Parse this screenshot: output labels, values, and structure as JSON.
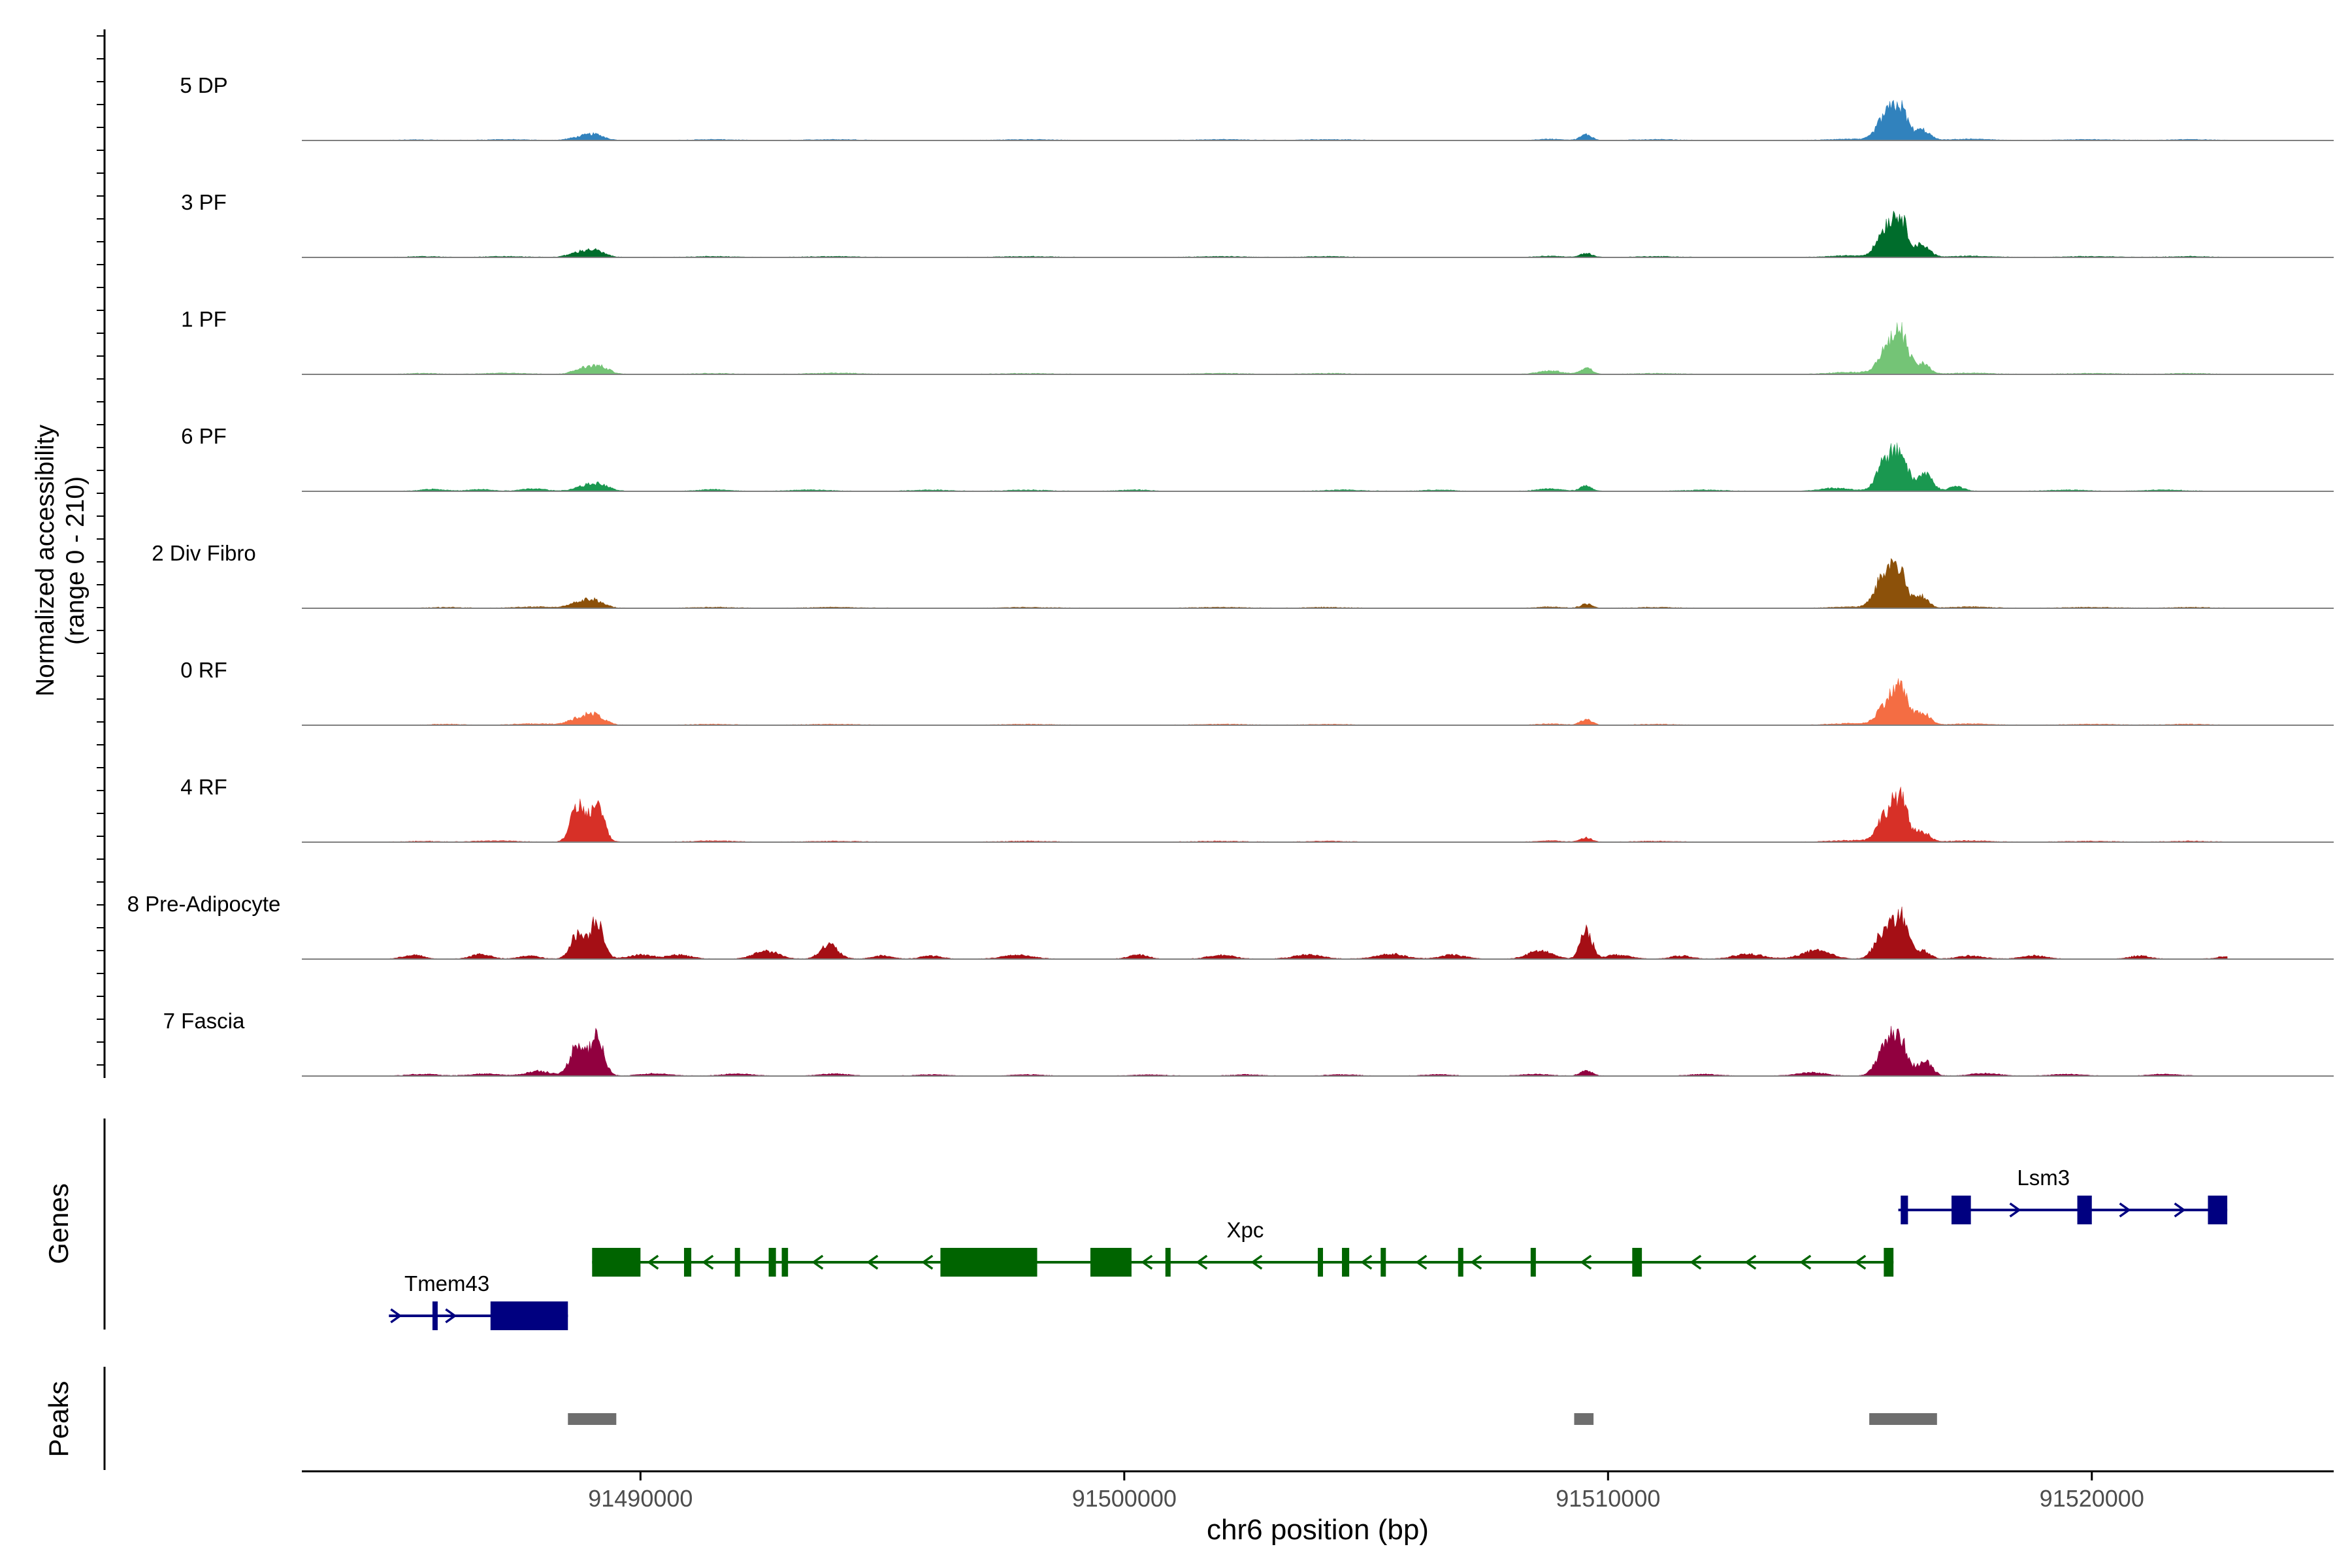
{
  "chart_data": {
    "type": "area",
    "title": "",
    "xlabel": "chr6 position (bp)",
    "ylabel": "Normalized accessibility",
    "ylabel_range": "(range 0 - 210)",
    "xlim": [
      91483000,
      91525000
    ],
    "ylim": [
      0,
      210
    ],
    "xticks": [
      91490000,
      91500000,
      91510000,
      91520000
    ],
    "xtick_labels": [
      "91490000",
      "91500000",
      "91510000",
      "91520000"
    ],
    "grid": false,
    "tracks": [
      {
        "name": "5 DP",
        "color": "#3182bd",
        "peaks": [
          [
            91485400,
            1.5,
            300
          ],
          [
            91487200,
            2,
            400
          ],
          [
            91488700,
            6,
            200
          ],
          [
            91489050,
            14,
            200
          ],
          [
            91491500,
            2,
            400
          ],
          [
            91494000,
            2,
            500
          ],
          [
            91498000,
            2,
            500
          ],
          [
            91502000,
            2,
            500
          ],
          [
            91504200,
            2,
            500
          ],
          [
            91508800,
            3,
            250
          ],
          [
            91509550,
            14,
            120
          ],
          [
            91511000,
            2,
            400
          ],
          [
            91515000,
            3,
            400
          ],
          [
            91515750,
            60,
            180
          ],
          [
            91516050,
            70,
            150
          ],
          [
            91516500,
            25,
            150
          ],
          [
            91517500,
            3,
            400
          ],
          [
            91520000,
            2,
            500
          ],
          [
            91522000,
            2,
            400
          ]
        ]
      },
      {
        "name": "3 PF",
        "color": "#006d2c",
        "peaks": [
          [
            91485500,
            2,
            300
          ],
          [
            91487200,
            2,
            400
          ],
          [
            91488700,
            10,
            200
          ],
          [
            91489050,
            16,
            200
          ],
          [
            91491500,
            2,
            400
          ],
          [
            91494000,
            2,
            500
          ],
          [
            91498000,
            2,
            500
          ],
          [
            91502000,
            2,
            500
          ],
          [
            91504200,
            2,
            400
          ],
          [
            91508800,
            3,
            250
          ],
          [
            91509550,
            10,
            120
          ],
          [
            91511000,
            2,
            400
          ],
          [
            91515000,
            4,
            400
          ],
          [
            91515750,
            70,
            180
          ],
          [
            91516050,
            85,
            150
          ],
          [
            91516500,
            30,
            150
          ],
          [
            91517500,
            3,
            400
          ],
          [
            91520000,
            2,
            500
          ],
          [
            91522000,
            2,
            400
          ]
        ]
      },
      {
        "name": "1 PF",
        "color": "#74c476",
        "peaks": [
          [
            91485500,
            2,
            300
          ],
          [
            91487200,
            3,
            400
          ],
          [
            91488800,
            12,
            200
          ],
          [
            91489150,
            18,
            200
          ],
          [
            91491500,
            2,
            400
          ],
          [
            91494000,
            3,
            500
          ],
          [
            91498000,
            2,
            500
          ],
          [
            91502000,
            2,
            500
          ],
          [
            91504200,
            2,
            400
          ],
          [
            91508800,
            8,
            250
          ],
          [
            91509550,
            16,
            120
          ],
          [
            91511000,
            2,
            400
          ],
          [
            91515000,
            5,
            400
          ],
          [
            91515750,
            55,
            180
          ],
          [
            91516050,
            95,
            150
          ],
          [
            91516500,
            25,
            150
          ],
          [
            91517500,
            3,
            400
          ],
          [
            91520000,
            2,
            500
          ],
          [
            91522000,
            2,
            400
          ]
        ]
      },
      {
        "name": "6 PF",
        "color": "#1a9850",
        "peaks": [
          [
            91485700,
            5,
            250
          ],
          [
            91486700,
            4,
            250
          ],
          [
            91487800,
            6,
            250
          ],
          [
            91488800,
            10,
            200
          ],
          [
            91489150,
            16,
            200
          ],
          [
            91491500,
            4,
            300
          ],
          [
            91493500,
            3,
            400
          ],
          [
            91496000,
            3,
            400
          ],
          [
            91498000,
            3,
            400
          ],
          [
            91500200,
            3,
            300
          ],
          [
            91504500,
            3,
            400
          ],
          [
            91506500,
            3,
            300
          ],
          [
            91508800,
            6,
            250
          ],
          [
            91509550,
            13,
            120
          ],
          [
            91512000,
            3,
            400
          ],
          [
            91514700,
            8,
            300
          ],
          [
            91515750,
            75,
            180
          ],
          [
            91516050,
            80,
            150
          ],
          [
            91516550,
            45,
            150
          ],
          [
            91517200,
            12,
            150
          ],
          [
            91519500,
            3,
            400
          ],
          [
            91521500,
            3,
            400
          ]
        ]
      },
      {
        "name": "2 Div Fibro",
        "color": "#8c510a",
        "peaks": [
          [
            91486000,
            2,
            300
          ],
          [
            91487800,
            3,
            400
          ],
          [
            91488700,
            12,
            200
          ],
          [
            91489050,
            18,
            200
          ],
          [
            91491500,
            2,
            400
          ],
          [
            91494000,
            2,
            500
          ],
          [
            91498000,
            2,
            500
          ],
          [
            91502000,
            2,
            500
          ],
          [
            91504200,
            2,
            400
          ],
          [
            91508800,
            3,
            250
          ],
          [
            91509550,
            10,
            120
          ],
          [
            91511000,
            2,
            400
          ],
          [
            91515000,
            3,
            400
          ],
          [
            91515700,
            75,
            180
          ],
          [
            91516000,
            90,
            150
          ],
          [
            91516450,
            30,
            150
          ],
          [
            91517500,
            3,
            400
          ],
          [
            91520000,
            2,
            500
          ],
          [
            91522000,
            2,
            400
          ]
        ]
      },
      {
        "name": "0 RF",
        "color": "#f46d43",
        "peaks": [
          [
            91486000,
            2,
            300
          ],
          [
            91487800,
            3,
            400
          ],
          [
            91488700,
            14,
            200
          ],
          [
            91489050,
            24,
            200
          ],
          [
            91491500,
            2,
            400
          ],
          [
            91494000,
            2,
            500
          ],
          [
            91498000,
            2,
            500
          ],
          [
            91502000,
            2,
            500
          ],
          [
            91504200,
            2,
            400
          ],
          [
            91508800,
            3,
            250
          ],
          [
            91509550,
            14,
            120
          ],
          [
            91511000,
            2,
            400
          ],
          [
            91515000,
            4,
            400
          ],
          [
            91515750,
            50,
            180
          ],
          [
            91516050,
            85,
            150
          ],
          [
            91516500,
            30,
            150
          ],
          [
            91517500,
            3,
            400
          ],
          [
            91520000,
            2,
            500
          ],
          [
            91522000,
            2,
            400
          ]
        ]
      },
      {
        "name": "4 RF",
        "color": "#d73027",
        "peaks": [
          [
            91485500,
            2,
            300
          ],
          [
            91487000,
            3,
            400
          ],
          [
            91488700,
            90,
            140
          ],
          [
            91489100,
            95,
            140
          ],
          [
            91491500,
            3,
            400
          ],
          [
            91494000,
            2,
            500
          ],
          [
            91498000,
            2,
            500
          ],
          [
            91502000,
            2,
            500
          ],
          [
            91504200,
            2,
            400
          ],
          [
            91508800,
            3,
            250
          ],
          [
            91509550,
            10,
            120
          ],
          [
            91511000,
            2,
            400
          ],
          [
            91515000,
            4,
            400
          ],
          [
            91515750,
            65,
            180
          ],
          [
            91516050,
            95,
            150
          ],
          [
            91516500,
            25,
            150
          ],
          [
            91517500,
            3,
            400
          ],
          [
            91520000,
            2,
            500
          ],
          [
            91522000,
            2,
            400
          ]
        ]
      },
      {
        "name": "8 Pre-Adipocyte",
        "color": "#a50f15",
        "peaks": [
          [
            91485300,
            10,
            200
          ],
          [
            91486700,
            12,
            200
          ],
          [
            91487700,
            8,
            200
          ],
          [
            91488700,
            60,
            150
          ],
          [
            91489100,
            95,
            140
          ],
          [
            91490000,
            10,
            250
          ],
          [
            91490800,
            10,
            250
          ],
          [
            91492600,
            20,
            250
          ],
          [
            91493900,
            35,
            180
          ],
          [
            91495000,
            8,
            200
          ],
          [
            91496000,
            8,
            200
          ],
          [
            91497800,
            10,
            300
          ],
          [
            91500300,
            10,
            200
          ],
          [
            91502000,
            10,
            250
          ],
          [
            91503800,
            10,
            300
          ],
          [
            91505500,
            12,
            300
          ],
          [
            91506800,
            10,
            250
          ],
          [
            91508600,
            20,
            250
          ],
          [
            91509550,
            70,
            120
          ],
          [
            91510200,
            10,
            250
          ],
          [
            91511500,
            8,
            200
          ],
          [
            91512900,
            12,
            300
          ],
          [
            91514300,
            20,
            300
          ],
          [
            91515700,
            65,
            180
          ],
          [
            91516050,
            100,
            150
          ],
          [
            91516500,
            20,
            150
          ],
          [
            91517500,
            8,
            250
          ],
          [
            91518800,
            8,
            250
          ],
          [
            91521000,
            8,
            200
          ],
          [
            91522800,
            6,
            200
          ]
        ]
      },
      {
        "name": "7 Fascia",
        "color": "#91003f",
        "peaks": [
          [
            91485500,
            4,
            300
          ],
          [
            91486800,
            5,
            300
          ],
          [
            91487900,
            12,
            250
          ],
          [
            91488700,
            80,
            150
          ],
          [
            91489100,
            95,
            140
          ],
          [
            91490300,
            6,
            300
          ],
          [
            91492000,
            5,
            300
          ],
          [
            91494000,
            5,
            300
          ],
          [
            91496000,
            3,
            300
          ],
          [
            91498000,
            3,
            300
          ],
          [
            91500500,
            3,
            300
          ],
          [
            91502500,
            3,
            300
          ],
          [
            91504500,
            3,
            300
          ],
          [
            91506500,
            3,
            300
          ],
          [
            91508500,
            4,
            300
          ],
          [
            91509550,
            14,
            120
          ],
          [
            91512000,
            4,
            300
          ],
          [
            91514200,
            8,
            300
          ],
          [
            91515750,
            80,
            180
          ],
          [
            91516050,
            75,
            150
          ],
          [
            91516550,
            35,
            150
          ],
          [
            91517800,
            6,
            300
          ],
          [
            91519500,
            4,
            300
          ],
          [
            91521500,
            4,
            300
          ]
        ]
      }
    ],
    "genes_track_label": "Genes",
    "genes": [
      {
        "name": "Tmem43",
        "strand": "+",
        "start": 91484800,
        "end": 91488500,
        "color": "#000080",
        "row": 2,
        "exons": [
          [
            91485700,
            91485800
          ],
          [
            91486900,
            91488500
          ]
        ],
        "label_x": 91486000
      },
      {
        "name": "Xpc",
        "strand": "-",
        "start": 91489000,
        "end": 91515900,
        "color": "#006400",
        "row": 1,
        "exons": [
          [
            91489000,
            91490000
          ],
          [
            91490900,
            91491050
          ],
          [
            91491950,
            91492050
          ],
          [
            91492650,
            91492800
          ],
          [
            91492920,
            91493050
          ],
          [
            91496200,
            91498200
          ],
          [
            91499300,
            91500150
          ],
          [
            91500850,
            91500950
          ],
          [
            91504000,
            91504100
          ],
          [
            91504500,
            91504650
          ],
          [
            91505300,
            91505400
          ],
          [
            91506900,
            91507000
          ],
          [
            91508400,
            91508500
          ],
          [
            91510500,
            91510700
          ],
          [
            91515700,
            91515900
          ]
        ],
        "label_x": 91502500
      },
      {
        "name": "Lsm3",
        "strand": "+",
        "start": 91516000,
        "end": 91522800,
        "color": "#000080",
        "row": 0,
        "exons": [
          [
            91516050,
            91516200
          ],
          [
            91517100,
            91517500
          ],
          [
            91519700,
            91520000
          ],
          [
            91522400,
            91522800
          ]
        ],
        "label_x": 91519000
      }
    ],
    "peaks_track_label": "Peaks",
    "peak_regions": [
      [
        91488500,
        91489500
      ],
      [
        91509300,
        91509700
      ],
      [
        91515400,
        91516800
      ]
    ]
  }
}
